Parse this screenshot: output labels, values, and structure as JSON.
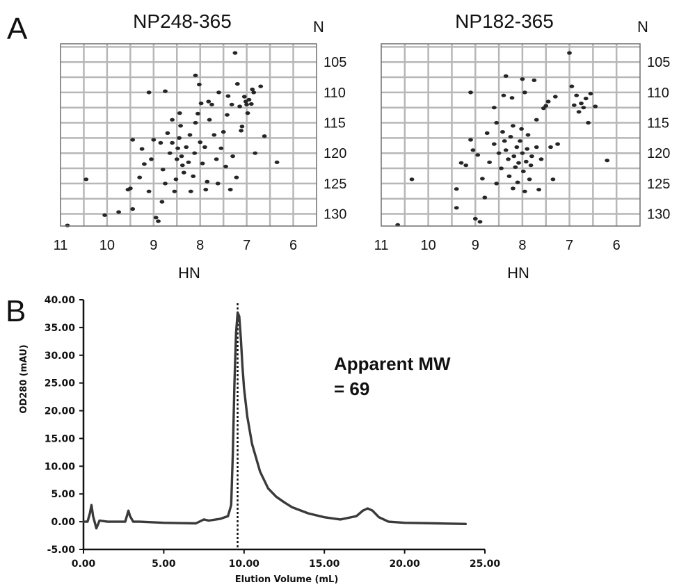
{
  "figure": {
    "panel_a_label": "A",
    "panel_b_label": "B"
  },
  "chart_data": [
    {
      "type": "scatter",
      "title": "NP248-365",
      "xlabel": "HN",
      "ylabel": "N",
      "xlim": [
        11,
        5.5
      ],
      "ylim": [
        132,
        102
      ],
      "x_ticks": [
        "11",
        "10",
        "9",
        "8",
        "7",
        "6"
      ],
      "y_ticks": [
        "105",
        "110",
        "115",
        "120",
        "125",
        "130"
      ],
      "grid": true,
      "peaks": [
        [
          10.85,
          131.9
        ],
        [
          10.45,
          124.3
        ],
        [
          10.05,
          130.2
        ],
        [
          9.75,
          129.7
        ],
        [
          9.55,
          126.0
        ],
        [
          9.5,
          125.8
        ],
        [
          9.45,
          129.2
        ],
        [
          9.3,
          124.0
        ],
        [
          9.2,
          121.8
        ],
        [
          9.1,
          126.3
        ],
        [
          9.05,
          121.0
        ],
        [
          9.0,
          117.8
        ],
        [
          8.95,
          130.6
        ],
        [
          8.9,
          131.2
        ],
        [
          8.85,
          118.3
        ],
        [
          8.82,
          128.0
        ],
        [
          8.8,
          122.7
        ],
        [
          8.75,
          125.0
        ],
        [
          8.7,
          116.7
        ],
        [
          8.65,
          120.0
        ],
        [
          8.6,
          118.3
        ],
        [
          8.55,
          126.3
        ],
        [
          8.52,
          124.3
        ],
        [
          8.5,
          121.0
        ],
        [
          8.48,
          119.2
        ],
        [
          8.45,
          117.5
        ],
        [
          8.44,
          113.4
        ],
        [
          8.42,
          115.5
        ],
        [
          8.4,
          120.5
        ],
        [
          8.38,
          122.0
        ],
        [
          8.35,
          123.2
        ],
        [
          8.3,
          119.0
        ],
        [
          8.25,
          121.5
        ],
        [
          8.22,
          117.0
        ],
        [
          8.2,
          126.3
        ],
        [
          8.15,
          123.8
        ],
        [
          8.12,
          120.0
        ],
        [
          8.1,
          115.0
        ],
        [
          8.05,
          113.5
        ],
        [
          8.02,
          108.7
        ],
        [
          8.0,
          118.2
        ],
        [
          7.98,
          111.8
        ],
        [
          7.95,
          121.7
        ],
        [
          7.9,
          119.0
        ],
        [
          7.88,
          126.0
        ],
        [
          7.85,
          124.7
        ],
        [
          7.82,
          111.5
        ],
        [
          7.8,
          114.5
        ],
        [
          7.75,
          112.0
        ],
        [
          7.7,
          117.0
        ],
        [
          7.65,
          121.0
        ],
        [
          7.62,
          125.0
        ],
        [
          7.6,
          110.0
        ],
        [
          7.55,
          119.2
        ],
        [
          7.5,
          116.5
        ],
        [
          7.45,
          122.2
        ],
        [
          7.42,
          113.7
        ],
        [
          7.4,
          110.6
        ],
        [
          7.35,
          126.0
        ],
        [
          7.32,
          112.0
        ],
        [
          7.3,
          120.5
        ],
        [
          7.25,
          103.5
        ],
        [
          7.22,
          124.0
        ],
        [
          7.2,
          108.6
        ],
        [
          7.15,
          112.3
        ],
        [
          7.12,
          116.3
        ],
        [
          7.1,
          115.6
        ],
        [
          7.05,
          110.7
        ],
        [
          7.02,
          111.5
        ],
        [
          7.0,
          112.0
        ],
        [
          6.98,
          113.4
        ],
        [
          6.95,
          111.2
        ],
        [
          6.9,
          111.9
        ],
        [
          6.88,
          109.5
        ],
        [
          6.85,
          110.0
        ],
        [
          6.82,
          120.0
        ],
        [
          6.7,
          109.0
        ],
        [
          6.62,
          117.2
        ],
        [
          6.35,
          121.5
        ],
        [
          8.75,
          109.8
        ],
        [
          9.1,
          110.0
        ],
        [
          9.45,
          117.8
        ],
        [
          9.25,
          119.3
        ],
        [
          8.1,
          107.2
        ],
        [
          8.6,
          114.5
        ]
      ]
    },
    {
      "type": "scatter",
      "title": "NP182-365",
      "xlabel": "HN",
      "ylabel": "N",
      "xlim": [
        11,
        5.5
      ],
      "ylim": [
        132,
        102
      ],
      "x_ticks": [
        "11",
        "10",
        "9",
        "8",
        "7",
        "6"
      ],
      "y_ticks": [
        "105",
        "110",
        "115",
        "120",
        "125",
        "130"
      ],
      "grid": true,
      "peaks": [
        [
          10.65,
          131.8
        ],
        [
          10.35,
          124.3
        ],
        [
          9.4,
          125.9
        ],
        [
          9.4,
          129.0
        ],
        [
          9.2,
          122.0
        ],
        [
          9.1,
          117.8
        ],
        [
          9.05,
          119.5
        ],
        [
          9.0,
          130.8
        ],
        [
          8.95,
          120.3
        ],
        [
          8.9,
          131.3
        ],
        [
          8.85,
          124.2
        ],
        [
          8.8,
          127.3
        ],
        [
          8.75,
          116.7
        ],
        [
          8.7,
          121.5
        ],
        [
          8.6,
          118.5
        ],
        [
          8.55,
          125.0
        ],
        [
          8.5,
          120.0
        ],
        [
          8.45,
          122.5
        ],
        [
          8.42,
          116.5
        ],
        [
          8.4,
          110.5
        ],
        [
          8.38,
          118.0
        ],
        [
          8.35,
          119.5
        ],
        [
          8.3,
          121.0
        ],
        [
          8.28,
          123.8
        ],
        [
          8.25,
          117.3
        ],
        [
          8.22,
          110.9
        ],
        [
          8.2,
          115.5
        ],
        [
          8.18,
          120.5
        ],
        [
          8.15,
          122.3
        ],
        [
          8.12,
          119.0
        ],
        [
          8.1,
          124.8
        ],
        [
          8.08,
          121.6
        ],
        [
          8.05,
          118.0
        ],
        [
          8.02,
          116.0
        ],
        [
          8.0,
          120.0
        ],
        [
          7.98,
          123.0
        ],
        [
          7.95,
          110.0
        ],
        [
          7.92,
          121.4
        ],
        [
          7.9,
          119.3
        ],
        [
          7.88,
          117.0
        ],
        [
          7.85,
          124.3
        ],
        [
          7.82,
          122.0
        ],
        [
          7.8,
          120.5
        ],
        [
          7.75,
          108.0
        ],
        [
          7.7,
          119.0
        ],
        [
          7.65,
          126.0
        ],
        [
          7.6,
          121.0
        ],
        [
          7.55,
          112.6
        ],
        [
          7.5,
          112.2
        ],
        [
          7.45,
          111.5
        ],
        [
          7.4,
          119.0
        ],
        [
          7.35,
          124.3
        ],
        [
          7.3,
          110.7
        ],
        [
          7.25,
          118.5
        ],
        [
          7.0,
          103.5
        ],
        [
          6.95,
          109.0
        ],
        [
          6.9,
          112.1
        ],
        [
          6.85,
          110.5
        ],
        [
          6.8,
          113.2
        ],
        [
          6.75,
          111.8
        ],
        [
          6.7,
          112.5
        ],
        [
          6.65,
          111.0
        ],
        [
          6.6,
          115.0
        ],
        [
          6.55,
          110.2
        ],
        [
          6.45,
          112.3
        ],
        [
          6.2,
          121.2
        ],
        [
          8.35,
          107.3
        ],
        [
          8.0,
          107.8
        ],
        [
          9.1,
          110.0
        ],
        [
          8.6,
          112.5
        ],
        [
          8.2,
          125.8
        ],
        [
          7.95,
          126.3
        ],
        [
          8.55,
          115.0
        ],
        [
          7.7,
          114.5
        ],
        [
          9.3,
          121.6
        ]
      ]
    },
    {
      "type": "line",
      "xlabel": "Elution Volume (mL)",
      "ylabel": "OD280 (mAU)",
      "xlim": [
        0,
        25
      ],
      "ylim": [
        -5,
        40
      ],
      "x_ticks": [
        "0.00",
        "5.00",
        "10.00",
        "15.00",
        "20.00",
        "25.00"
      ],
      "y_ticks": [
        "-5.00",
        "0.00",
        "5.00",
        "10.00",
        "15.00",
        "20.00",
        "25.00",
        "30.00",
        "35.00",
        "40.00"
      ],
      "grid": false,
      "annotation_line1": "Apparent MW",
      "annotation_line2": "= 69",
      "peak_marker_x": 9.6,
      "x": [
        0.0,
        0.25,
        0.4,
        0.5,
        0.6,
        0.8,
        1.0,
        1.5,
        2.0,
        2.6,
        2.8,
        2.9,
        3.1,
        3.5,
        5.0,
        7.0,
        7.5,
        7.8,
        8.5,
        9.0,
        9.2,
        9.3,
        9.4,
        9.5,
        9.6,
        9.7,
        9.8,
        9.9,
        10.0,
        10.2,
        10.5,
        11.0,
        11.5,
        12.0,
        12.5,
        13.0,
        14.0,
        15.0,
        16.0,
        17.0,
        17.4,
        17.7,
        18.0,
        18.4,
        19.0,
        20.0,
        22.0,
        23.8
      ],
      "y": [
        0.0,
        0.0,
        1.5,
        3.0,
        1.0,
        -1.2,
        0.2,
        0.0,
        0.0,
        0.0,
        2.0,
        1.0,
        0.0,
        0.0,
        -0.2,
        -0.3,
        0.4,
        0.2,
        0.5,
        1.0,
        3.0,
        12.0,
        25.0,
        34.0,
        37.7,
        37.0,
        33.0,
        28.0,
        24.0,
        19.0,
        14.0,
        9.0,
        6.0,
        4.5,
        3.5,
        2.6,
        1.5,
        0.8,
        0.4,
        1.0,
        2.0,
        2.4,
        2.0,
        0.8,
        0.0,
        -0.2,
        -0.3,
        -0.4
      ]
    }
  ]
}
